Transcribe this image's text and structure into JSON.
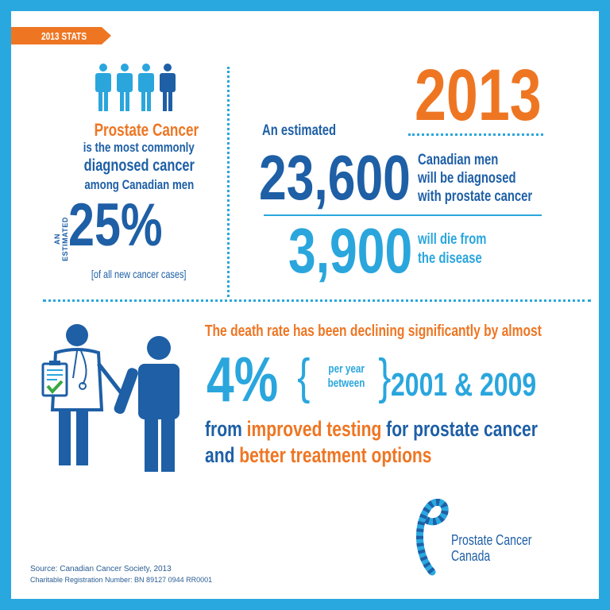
{
  "tag": {
    "label": "2013 STATS"
  },
  "left": {
    "headline": "Prostate Cancer",
    "line1": "is the most commonly",
    "line2": "diagnosed cancer",
    "line3": "among Canadian men",
    "estimated": "AN ESTIMATED",
    "percent": "25%",
    "note": "[of all new cancer cases]"
  },
  "right": {
    "year": "2013",
    "estimated": "An estimated",
    "diagnosed_number": "23,600",
    "diagnosed_line1": "Canadian men",
    "diagnosed_line2": "will be diagnosed",
    "diagnosed_line3": "with prostate cancer",
    "deaths_number": "3,900",
    "deaths_line1": "will die from",
    "deaths_line2": "the disease"
  },
  "trend": {
    "headline": "The death rate has been declining significantly by almost",
    "percent": "4%",
    "per_year": "per year",
    "between": "between",
    "years": "2001 & 2009",
    "line1_a": "from ",
    "line1_b": "improved testing",
    "line1_c": " for prostate cancer",
    "line2_a": "and ",
    "line2_b": "better treatment options"
  },
  "logo": {
    "line1": "Prostate Cancer",
    "line2": "Canada"
  },
  "footer": {
    "source": "Source: Canadian Cancer Society, 2013",
    "registration": "Charitable Registration Number: BN 89127 0944 RR0001"
  },
  "colors": {
    "border": "#29a8df",
    "navy": "#1e5fa6",
    "light_blue": "#2aa6dd",
    "orange": "#ee7623"
  },
  "icons": [
    "person-icon",
    "doctor-icon",
    "patient-icon",
    "ribbon-logo-icon",
    "checkmark-icon"
  ]
}
